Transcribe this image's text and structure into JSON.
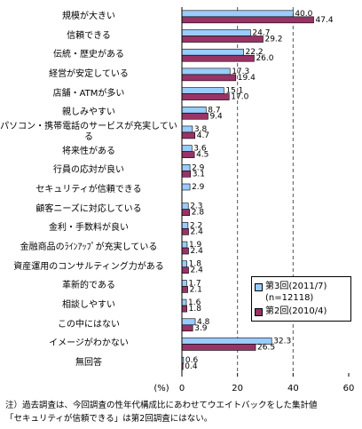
{
  "chart_data": {
    "type": "hbar",
    "categories": [
      "規模が大きい",
      "信頼できる",
      "伝統・歴史がある",
      "経営が安定している",
      "店舗・ATMが多い",
      "親しみやすい",
      "パソコン・携帯電話のサービスが充実している",
      "将来性がある",
      "行員の応対が良い",
      "セキュリティが信頼できる",
      "顧客ニーズに対応している",
      "金利・手数料が良い",
      "金融商品のﾗｲﾝｱｯﾌﾟが充実している",
      "資産運用のコンサルティング力がある",
      "革新的である",
      "相談しやすい",
      "この中にはない",
      "イメージがわかない",
      "無回答"
    ],
    "series": [
      {
        "name": "第3回(2011/7)\n(n=12118)",
        "color": "#99ccff",
        "values": [
          40.0,
          24.7,
          22.2,
          17.3,
          15.1,
          8.7,
          3.8,
          3.6,
          2.9,
          2.9,
          2.3,
          2.2,
          1.9,
          1.8,
          1.7,
          1.6,
          4.8,
          32.3,
          0.6
        ],
        "value_labels": [
          "40.0",
          "24.7",
          "22.2",
          "17.3",
          "15.1",
          "8.7",
          "3.8",
          "3.6",
          "2.9",
          "2.9",
          "2.3",
          "2.2",
          "1.9",
          "1.8",
          "1.7",
          "1.6",
          "4.8",
          "32.3",
          "0.6"
        ]
      },
      {
        "name": "第2回(2010/4)",
        "color": "#993366",
        "values": [
          47.4,
          29.2,
          26.0,
          19.4,
          17.0,
          9.4,
          4.7,
          4.5,
          3.1,
          null,
          2.8,
          2.4,
          2.4,
          2.4,
          2.1,
          1.8,
          3.9,
          26.5,
          0.4
        ],
        "value_labels": [
          "47.4",
          "29.2",
          "26.0",
          "19.4",
          "17.0",
          "9.4",
          "4.7",
          "4.5",
          "3.1",
          null,
          "2.8",
          "2.4",
          "2.4",
          "2.4",
          "2.1",
          "1.8",
          "3.9",
          "26.5",
          "0.4"
        ]
      }
    ],
    "xlabel": "(%)",
    "xlim": [
      0,
      60
    ],
    "xticks": [
      0,
      20,
      40,
      60
    ],
    "grid": true,
    "notes": [
      "注）過去調査は、今回調査の性年代構成比にあわせてウエイトバックをした集計値",
      "「セキュリティが信頼できる」は第2回調査にはない。"
    ]
  }
}
